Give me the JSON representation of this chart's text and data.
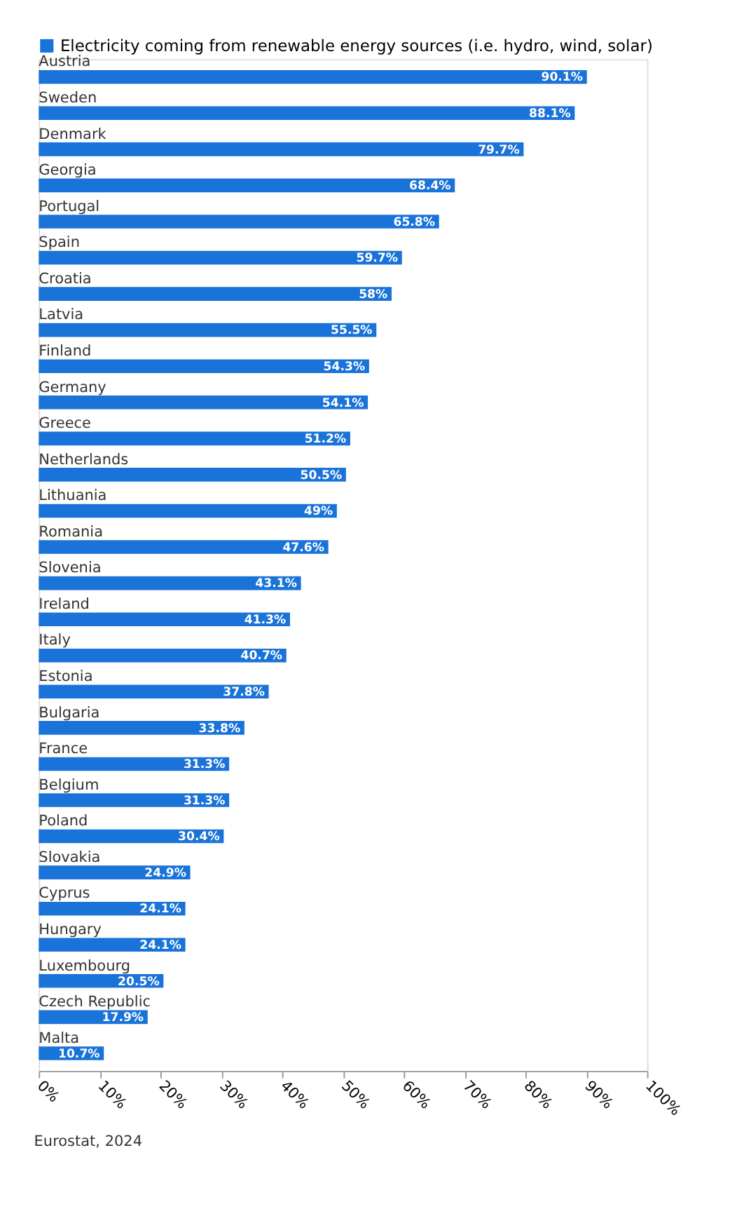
{
  "chart_data": {
    "type": "bar",
    "orientation": "horizontal",
    "categories": [
      "Austria",
      "Sweden",
      "Denmark",
      "Georgia",
      "Portugal",
      "Spain",
      "Croatia",
      "Latvia",
      "Finland",
      "Germany",
      "Greece",
      "Netherlands",
      "Lithuania",
      "Romania",
      "Slovenia",
      "Ireland",
      "Italy",
      "Estonia",
      "Bulgaria",
      "France",
      "Belgium",
      "Poland",
      "Slovakia",
      "Cyprus",
      "Hungary",
      "Luxembourg",
      "Czech Republic",
      "Malta"
    ],
    "series": [
      {
        "name": "Electricity coming from renewable energy sources (i.e. hydro, wind, solar)",
        "color": "#1a73d8",
        "values": [
          90.1,
          88.1,
          79.7,
          68.4,
          65.8,
          59.7,
          58,
          55.5,
          54.3,
          54.1,
          51.2,
          50.5,
          49,
          47.6,
          43.1,
          41.3,
          40.7,
          37.8,
          33.8,
          31.3,
          31.3,
          30.4,
          24.9,
          24.1,
          24.1,
          20.5,
          17.9,
          10.7
        ],
        "value_labels": [
          "90.1%",
          "88.1%",
          "79.7%",
          "68.4%",
          "65.8%",
          "59.7%",
          "58%",
          "55.5%",
          "54.3%",
          "54.1%",
          "51.2%",
          "50.5%",
          "49%",
          "47.6%",
          "43.1%",
          "41.3%",
          "40.7%",
          "37.8%",
          "33.8%",
          "31.3%",
          "31.3%",
          "30.4%",
          "24.9%",
          "24.1%",
          "24.1%",
          "20.5%",
          "17.9%",
          "10.7%"
        ]
      }
    ],
    "xlim": [
      0,
      100
    ],
    "xticks": [
      {
        "value": 0,
        "label": "0%"
      },
      {
        "value": 10,
        "label": "10%"
      },
      {
        "value": 20,
        "label": "20%"
      },
      {
        "value": 30,
        "label": "30%"
      },
      {
        "value": 40,
        "label": "40%"
      },
      {
        "value": 50,
        "label": "50%"
      },
      {
        "value": 60,
        "label": "60%"
      },
      {
        "value": 70,
        "label": "70%"
      },
      {
        "value": 80,
        "label": "80%"
      },
      {
        "value": 90,
        "label": "90%"
      },
      {
        "value": 100,
        "label": "100%"
      }
    ],
    "legend": "top left",
    "grid": false,
    "annotations": [
      "Eurostat, 2024"
    ]
  }
}
